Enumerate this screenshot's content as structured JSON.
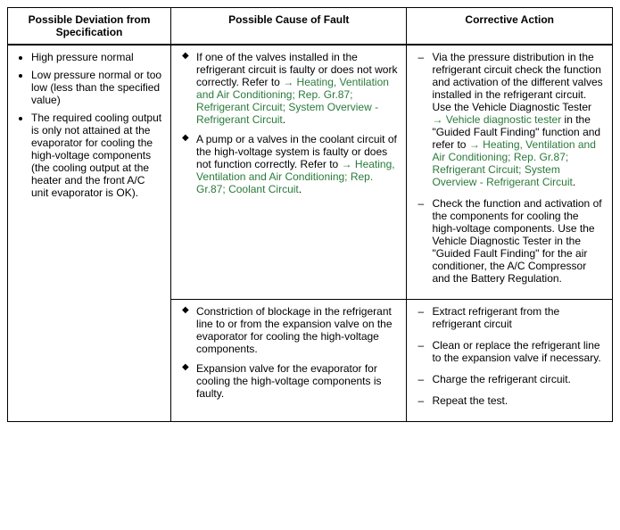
{
  "headers": {
    "col1": "Possible Deviation from Specification",
    "col2": "Possible Cause of Fault",
    "col3": "Corrective Action"
  },
  "deviation": {
    "item1": "High pressure normal",
    "item2": "Low pressure normal or too low (less than the specified value)",
    "item3": "The required cooling output is only not attained at the evaporator for cooling the high-voltage components (the cooling output at the heater and the front A/C unit evaporator is OK)."
  },
  "cause1": {
    "c1_pre": "If one of the valves installed in the refrigerant circuit is faulty or does not work correctly. Refer to ",
    "c1_link": "→ Heating, Ventilation and Air Conditioning; Rep. Gr.87; Refrigerant Circuit; System Overview - Refrigerant Circuit",
    "c1_post": ".",
    "c2_pre": "A pump or a valves in the coolant circuit of the high-voltage system is faulty or does not function correctly. Refer to ",
    "c2_link": "→ Heating, Ventilation and Air Conditioning; Rep. Gr.87; Coolant Circuit",
    "c2_post": "."
  },
  "action1": {
    "a1_p1": "Via the pressure distribution in the refrigerant circuit check the function and activation of the different valves installed in the refrigerant circuit. Use the Vehicle Diagnostic Tester ",
    "a1_link1": "→ Vehicle diagnostic tester",
    "a1_p2": " in the \"Guided Fault Finding\" function and refer to ",
    "a1_link2": "→ Heating, Ventilation and Air Conditioning; Rep. Gr.87; Refrigerant Circuit; System Overview - Refrigerant Circuit",
    "a1_p3": ".",
    "a2": "Check the function and activation of the components for cooling the high-voltage components. Use the Vehicle Diagnostic Tester in the \"Guided Fault Finding\" for the air conditioner, the A/C Compressor and the Battery Regulation."
  },
  "cause2": {
    "c1": "Constriction of blockage in the refrigerant line to or from the expansion valve on the evaporator for cooling the high-voltage components.",
    "c2": "Expansion valve for the evaporator for cooling the high-voltage components is faulty."
  },
  "action2": {
    "a1": "Extract refrigerant from the refrigerant circuit",
    "a2": "Clean or replace the refrigerant line to the expansion valve if necessary.",
    "a3": "Charge the refrigerant circuit.",
    "a4": "Repeat the test."
  },
  "colors": {
    "link": "#2a7a3a",
    "text": "#000000",
    "border": "#000000",
    "background": "#ffffff"
  }
}
